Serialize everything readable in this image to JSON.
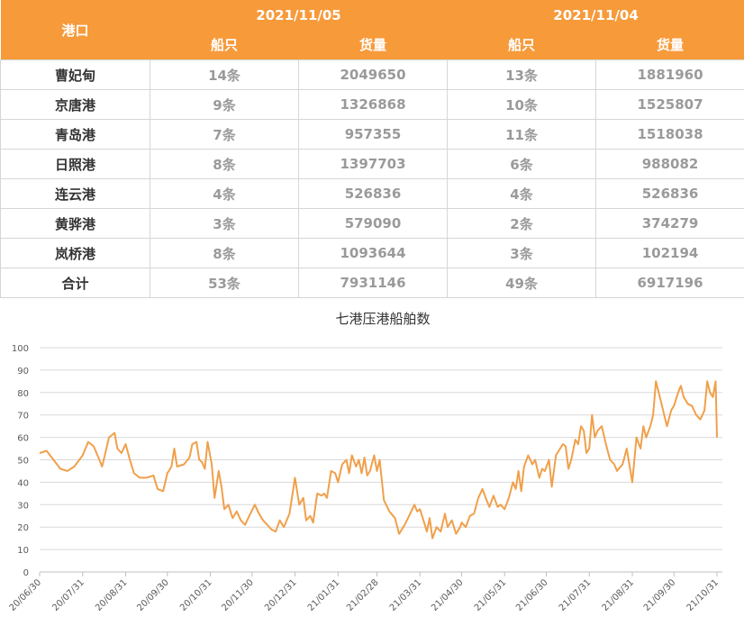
{
  "table": {
    "port_header": "港口",
    "date1": "2021/11/05",
    "date2": "2021/11/04",
    "ships_label": "船只",
    "cargo_label": "货量",
    "rows": [
      {
        "port": "曹妃甸",
        "ships1": "14条",
        "cargo1": "2049650",
        "ships2": "13条",
        "cargo2": "1881960"
      },
      {
        "port": "京唐港",
        "ships1": "9条",
        "cargo1": "1326868",
        "ships2": "10条",
        "cargo2": "1525807"
      },
      {
        "port": "青岛港",
        "ships1": "7条",
        "cargo1": "957355",
        "ships2": "11条",
        "cargo2": "1518038"
      },
      {
        "port": "日照港",
        "ships1": "8条",
        "cargo1": "1397703",
        "ships2": "6条",
        "cargo2": "988082"
      },
      {
        "port": "连云港",
        "ships1": "4条",
        "cargo1": "526836",
        "ships2": "4条",
        "cargo2": "526836"
      },
      {
        "port": "黄骅港",
        "ships1": "3条",
        "cargo1": "579090",
        "ships2": "2条",
        "cargo2": "374279"
      },
      {
        "port": "岚桥港",
        "ships1": "8条",
        "cargo1": "1093644",
        "ships2": "3条",
        "cargo2": "102194"
      },
      {
        "port": "合计",
        "ships1": "53条",
        "cargo1": "7931146",
        "ships2": "49条",
        "cargo2": "6917196"
      }
    ]
  },
  "colors": {
    "header": "#f79a3a",
    "line": "#f0a04b",
    "grid": "#d9d9d9"
  },
  "chart_data": {
    "type": "line",
    "title": "七港压港船舶数",
    "xlabel": "",
    "ylabel": "",
    "ylim": [
      0,
      100
    ],
    "yticks": [
      0,
      10,
      20,
      30,
      40,
      50,
      60,
      70,
      80,
      90,
      100
    ],
    "x_tick_labels": [
      "20/06/30",
      "20/07/31",
      "20/08/31",
      "20/09/30",
      "20/10/31",
      "20/11/30",
      "20/12/31",
      "21/01/31",
      "21/02/28",
      "21/03/31",
      "21/04/30",
      "21/05/31",
      "21/06/30",
      "21/07/31",
      "21/08/31",
      "21/09/30",
      "21/10/31"
    ],
    "grid": "horizontal",
    "series": [
      {
        "color": "#f0a04b",
        "points": [
          [
            "2020-06-30",
            53
          ],
          [
            "2020-07-05",
            54
          ],
          [
            "2020-07-10",
            50
          ],
          [
            "2020-07-15",
            46
          ],
          [
            "2020-07-20",
            45
          ],
          [
            "2020-07-25",
            47
          ],
          [
            "2020-07-31",
            52
          ],
          [
            "2020-08-04",
            58
          ],
          [
            "2020-08-08",
            56
          ],
          [
            "2020-08-12",
            50
          ],
          [
            "2020-08-14",
            47
          ],
          [
            "2020-08-16",
            52
          ],
          [
            "2020-08-19",
            60
          ],
          [
            "2020-08-23",
            62
          ],
          [
            "2020-08-25",
            55
          ],
          [
            "2020-08-28",
            53
          ],
          [
            "2020-08-31",
            57
          ],
          [
            "2020-09-03",
            50
          ],
          [
            "2020-09-06",
            44
          ],
          [
            "2020-09-10",
            42
          ],
          [
            "2020-09-15",
            42
          ],
          [
            "2020-09-20",
            43
          ],
          [
            "2020-09-23",
            37
          ],
          [
            "2020-09-27",
            36
          ],
          [
            "2020-09-30",
            44
          ],
          [
            "2020-10-03",
            47
          ],
          [
            "2020-10-05",
            55
          ],
          [
            "2020-10-07",
            47
          ],
          [
            "2020-10-12",
            48
          ],
          [
            "2020-10-16",
            51
          ],
          [
            "2020-10-18",
            57
          ],
          [
            "2020-10-21",
            58
          ],
          [
            "2020-10-23",
            50
          ],
          [
            "2020-10-25",
            49
          ],
          [
            "2020-10-27",
            46
          ],
          [
            "2020-10-29",
            58
          ],
          [
            "2020-11-01",
            48
          ],
          [
            "2020-11-03",
            33
          ],
          [
            "2020-11-06",
            45
          ],
          [
            "2020-11-08",
            38
          ],
          [
            "2020-11-10",
            28
          ],
          [
            "2020-11-13",
            30
          ],
          [
            "2020-11-16",
            24
          ],
          [
            "2020-11-19",
            27
          ],
          [
            "2020-11-22",
            23
          ],
          [
            "2020-11-25",
            21
          ],
          [
            "2020-11-28",
            25
          ],
          [
            "2020-12-02",
            30
          ],
          [
            "2020-12-05",
            26
          ],
          [
            "2020-12-08",
            23
          ],
          [
            "2020-12-11",
            21
          ],
          [
            "2020-12-14",
            19
          ],
          [
            "2020-12-17",
            18
          ],
          [
            "2020-12-20",
            23
          ],
          [
            "2020-12-23",
            20
          ],
          [
            "2020-12-27",
            26
          ],
          [
            "2020-12-31",
            42
          ],
          [
            "2021-01-03",
            30
          ],
          [
            "2021-01-06",
            33
          ],
          [
            "2021-01-08",
            23
          ],
          [
            "2021-01-11",
            25
          ],
          [
            "2021-01-13",
            22
          ],
          [
            "2021-01-16",
            35
          ],
          [
            "2021-01-19",
            34
          ],
          [
            "2021-01-21",
            35
          ],
          [
            "2021-01-23",
            33
          ],
          [
            "2021-01-26",
            45
          ],
          [
            "2021-01-29",
            44
          ],
          [
            "2021-01-31",
            40
          ],
          [
            "2021-02-03",
            48
          ],
          [
            "2021-02-06",
            50
          ],
          [
            "2021-02-08",
            44
          ],
          [
            "2021-02-10",
            52
          ],
          [
            "2021-02-13",
            47
          ],
          [
            "2021-02-15",
            50
          ],
          [
            "2021-02-17",
            44
          ],
          [
            "2021-02-19",
            51
          ],
          [
            "2021-02-21",
            43
          ],
          [
            "2021-02-23",
            45
          ],
          [
            "2021-02-26",
            52
          ],
          [
            "2021-02-28",
            45
          ],
          [
            "2021-03-02",
            50
          ],
          [
            "2021-03-05",
            32
          ],
          [
            "2021-03-09",
            27
          ],
          [
            "2021-03-13",
            24
          ],
          [
            "2021-03-16",
            17
          ],
          [
            "2021-03-20",
            21
          ],
          [
            "2021-03-24",
            26
          ],
          [
            "2021-03-27",
            30
          ],
          [
            "2021-03-29",
            27
          ],
          [
            "2021-03-31",
            28
          ],
          [
            "2021-04-03",
            22
          ],
          [
            "2021-04-05",
            18
          ],
          [
            "2021-04-07",
            24
          ],
          [
            "2021-04-09",
            15
          ],
          [
            "2021-04-12",
            20
          ],
          [
            "2021-04-15",
            18
          ],
          [
            "2021-04-18",
            26
          ],
          [
            "2021-04-20",
            20
          ],
          [
            "2021-04-23",
            23
          ],
          [
            "2021-04-26",
            17
          ],
          [
            "2021-04-29",
            20
          ],
          [
            "2021-04-30",
            22
          ],
          [
            "2021-05-03",
            20
          ],
          [
            "2021-05-06",
            25
          ],
          [
            "2021-05-09",
            26
          ],
          [
            "2021-05-12",
            33
          ],
          [
            "2021-05-15",
            37
          ],
          [
            "2021-05-18",
            32
          ],
          [
            "2021-05-20",
            29
          ],
          [
            "2021-05-23",
            34
          ],
          [
            "2021-05-26",
            29
          ],
          [
            "2021-05-28",
            30
          ],
          [
            "2021-05-31",
            28
          ],
          [
            "2021-06-03",
            33
          ],
          [
            "2021-06-06",
            40
          ],
          [
            "2021-06-08",
            37
          ],
          [
            "2021-06-10",
            45
          ],
          [
            "2021-06-12",
            36
          ],
          [
            "2021-06-14",
            47
          ],
          [
            "2021-06-17",
            52
          ],
          [
            "2021-06-20",
            48
          ],
          [
            "2021-06-22",
            50
          ],
          [
            "2021-06-25",
            42
          ],
          [
            "2021-06-27",
            46
          ],
          [
            "2021-06-29",
            45
          ],
          [
            "2021-07-02",
            50
          ],
          [
            "2021-07-04",
            38
          ],
          [
            "2021-07-07",
            52
          ],
          [
            "2021-07-10",
            55
          ],
          [
            "2021-07-12",
            57
          ],
          [
            "2021-07-14",
            56
          ],
          [
            "2021-07-16",
            46
          ],
          [
            "2021-07-18",
            50
          ],
          [
            "2021-07-21",
            59
          ],
          [
            "2021-07-23",
            57
          ],
          [
            "2021-07-25",
            65
          ],
          [
            "2021-07-27",
            63
          ],
          [
            "2021-07-29",
            53
          ],
          [
            "2021-07-31",
            55
          ],
          [
            "2021-08-02",
            70
          ],
          [
            "2021-08-04",
            60
          ],
          [
            "2021-08-06",
            63
          ],
          [
            "2021-08-09",
            65
          ],
          [
            "2021-08-12",
            57
          ],
          [
            "2021-08-15",
            50
          ],
          [
            "2021-08-18",
            48
          ],
          [
            "2021-08-20",
            45
          ],
          [
            "2021-08-24",
            48
          ],
          [
            "2021-08-27",
            55
          ],
          [
            "2021-08-31",
            40
          ],
          [
            "2021-09-03",
            60
          ],
          [
            "2021-09-06",
            55
          ],
          [
            "2021-09-08",
            65
          ],
          [
            "2021-09-10",
            60
          ],
          [
            "2021-09-13",
            65
          ],
          [
            "2021-09-15",
            70
          ],
          [
            "2021-09-17",
            85
          ],
          [
            "2021-09-19",
            80
          ],
          [
            "2021-09-21",
            75
          ],
          [
            "2021-09-23",
            70
          ],
          [
            "2021-09-25",
            65
          ],
          [
            "2021-09-28",
            72
          ],
          [
            "2021-09-30",
            74
          ],
          [
            "2021-10-03",
            80
          ],
          [
            "2021-10-05",
            83
          ],
          [
            "2021-10-07",
            78
          ],
          [
            "2021-10-10",
            75
          ],
          [
            "2021-10-13",
            74
          ],
          [
            "2021-10-16",
            70
          ],
          [
            "2021-10-19",
            68
          ],
          [
            "2021-10-22",
            72
          ],
          [
            "2021-10-24",
            85
          ],
          [
            "2021-10-26",
            80
          ],
          [
            "2021-10-28",
            78
          ],
          [
            "2021-10-30",
            85
          ],
          [
            "2021-10-31",
            60
          ]
        ]
      }
    ]
  }
}
